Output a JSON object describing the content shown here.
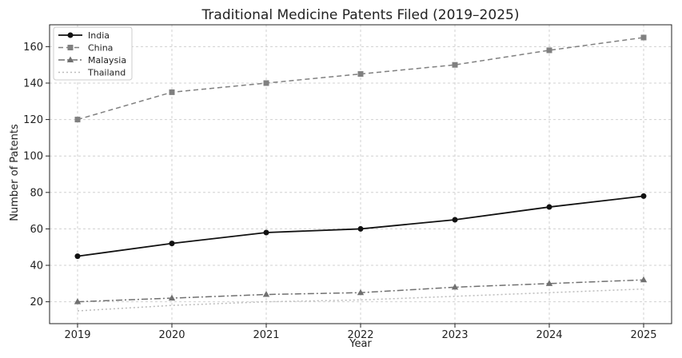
{
  "chart_data": {
    "type": "line",
    "title": "Traditional Medicine Patents Filed (2019–2025)",
    "xlabel": "Year",
    "ylabel": "Number of Patents",
    "x": [
      "2019",
      "2020",
      "2021",
      "2022",
      "2023",
      "2024",
      "2025"
    ],
    "ylim": [
      8,
      172
    ],
    "yticks": [
      "20",
      "40",
      "60",
      "80",
      "100",
      "120",
      "140",
      "160"
    ],
    "grid": true,
    "legend_position": "top-left",
    "series": [
      {
        "name": "India",
        "values": [
          45,
          52,
          58,
          60,
          65,
          72,
          78
        ],
        "color": "#111111",
        "line_style": "solid",
        "marker": "circle"
      },
      {
        "name": "China",
        "values": [
          120,
          135,
          140,
          145,
          150,
          158,
          165
        ],
        "color": "#808080",
        "line_style": "dashed",
        "marker": "square"
      },
      {
        "name": "Malaysia",
        "values": [
          20,
          22,
          24,
          25,
          28,
          30,
          32
        ],
        "color": "#707070",
        "line_style": "dashdot",
        "marker": "triangle"
      },
      {
        "name": "Thailand",
        "values": [
          15,
          18,
          20,
          21,
          23,
          25,
          27
        ],
        "color": "#bbbbbb",
        "line_style": "dotted",
        "marker": "none"
      }
    ]
  }
}
